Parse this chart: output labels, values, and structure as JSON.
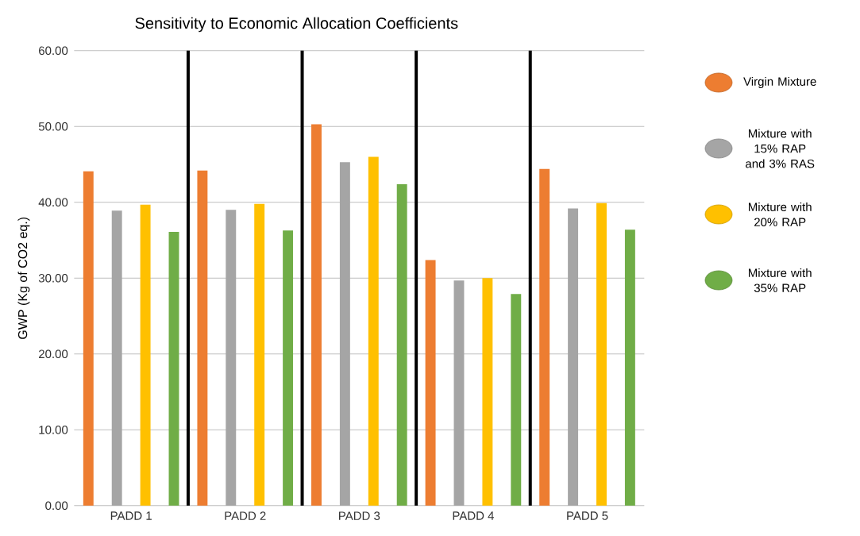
{
  "chart_data": {
    "type": "bar",
    "title": "Sensitivity to Economic Allocation Coefficients",
    "ylabel": "GWP (Kg of CO2 eq.)",
    "categories": [
      "PADD 1",
      "PADD 2",
      "PADD 3",
      "PADD 4",
      "PADD 5"
    ],
    "series": [
      {
        "name": "Virgin Mixture",
        "color": "#ed7d31",
        "values": [
          44.1,
          44.2,
          50.3,
          32.4,
          44.4
        ]
      },
      {
        "name": "Mixture with 15% RAP and 3% RAS",
        "color": "#a5a5a5",
        "values": [
          38.9,
          39.0,
          45.3,
          29.7,
          39.2
        ]
      },
      {
        "name": "Mixture with 20% RAP",
        "color": "#ffc000",
        "values": [
          39.7,
          39.8,
          46.0,
          30.0,
          39.9
        ]
      },
      {
        "name": "Mixture with 35% RAP",
        "color": "#70ad47",
        "values": [
          36.1,
          36.3,
          42.4,
          27.9,
          36.4
        ]
      }
    ],
    "ylim": [
      0,
      60
    ],
    "yticks": [
      {
        "value": 0,
        "label": "0.00"
      },
      {
        "value": 10,
        "label": "10.00"
      },
      {
        "value": 20,
        "label": "20.00"
      },
      {
        "value": 30,
        "label": "30.00"
      },
      {
        "value": 40,
        "label": "40.00"
      },
      {
        "value": 50,
        "label": "50.00"
      },
      {
        "value": 60,
        "label": "60.00"
      }
    ],
    "grid": "y",
    "legend": "right"
  }
}
